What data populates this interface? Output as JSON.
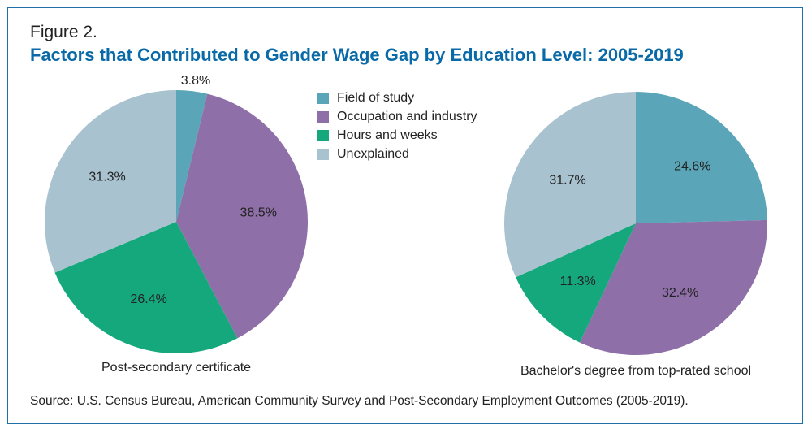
{
  "figure_label": "Figure 2.",
  "title": "Factors that Contributed to Gender Wage Gap by Education Level: 2005-2019",
  "source": "Source: U.S. Census Bureau, American Community Survey and Post-Secondary Employment Outcomes (2005-2019).",
  "chart_data": [
    {
      "type": "pie",
      "title": "Post-secondary certificate",
      "categories": [
        "Field of study",
        "Occupation and industry",
        "Hours and weeks",
        "Unexplained"
      ],
      "values": [
        3.8,
        38.5,
        26.4,
        31.3
      ],
      "labels": [
        "3.8%",
        "38.5%",
        "26.4%",
        "31.3%"
      ],
      "colors": [
        "#5aa6b8",
        "#8e6fa8",
        "#15a87d",
        "#a9c2d0"
      ],
      "legend": "top-right"
    },
    {
      "type": "pie",
      "title": "Bachelor's degree from top-rated school",
      "categories": [
        "Field of study",
        "Occupation and industry",
        "Hours and weeks",
        "Unexplained"
      ],
      "values": [
        24.6,
        32.4,
        11.3,
        31.7
      ],
      "labels": [
        "24.6%",
        "32.4%",
        "11.3%",
        "31.7%"
      ],
      "colors": [
        "#5aa6b8",
        "#8e6fa8",
        "#15a87d",
        "#a9c2d0"
      ]
    }
  ],
  "legend": {
    "items": [
      {
        "label": "Field of study",
        "color": "#5aa6b8"
      },
      {
        "label": "Occupation and industry",
        "color": "#8e6fa8"
      },
      {
        "label": "Hours and weeks",
        "color": "#15a87d"
      },
      {
        "label": "Unexplained",
        "color": "#a9c2d0"
      }
    ]
  }
}
